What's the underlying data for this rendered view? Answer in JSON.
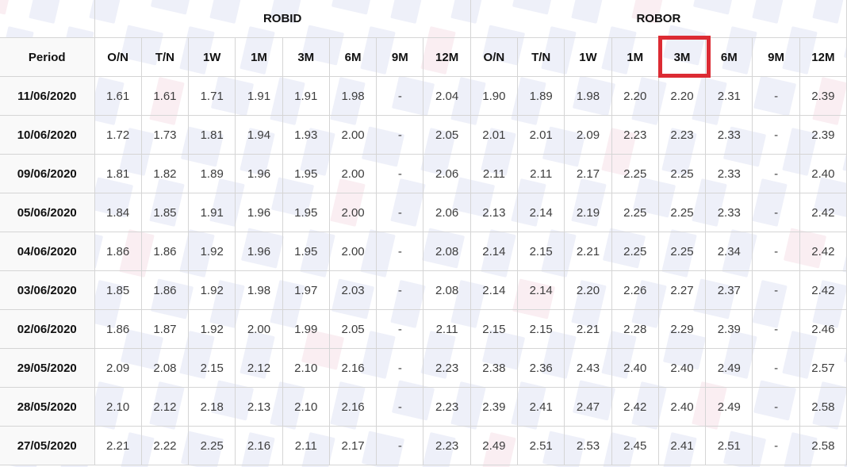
{
  "table": {
    "period_header": "Period",
    "groups": [
      {
        "label": "ROBID"
      },
      {
        "label": "ROBOR"
      }
    ]
  },
  "highlight": {
    "target_group": "ROBOR",
    "target_tenor": "3M",
    "color": "#dc2b33"
  },
  "colors": {
    "border": "#d5d5d5",
    "header_text": "#111111",
    "value_text": "#3d3d3d",
    "period_column_bg": "#f9f9f9",
    "watermark_lavender": "#eef0f9",
    "watermark_pink": "#faeef2",
    "highlight_red": "#dc2b33"
  },
  "chart_data": {
    "type": "table",
    "title": "",
    "column_groups": [
      "ROBID",
      "ROBOR"
    ],
    "tenors": [
      "O/N",
      "T/N",
      "1W",
      "1M",
      "3M",
      "6M",
      "9M",
      "12M"
    ],
    "rows": [
      {
        "period": "11/06/2020",
        "robid": [
          "1.61",
          "1.61",
          "1.71",
          "1.91",
          "1.91",
          "1.98",
          "-",
          "2.04"
        ],
        "robor": [
          "1.90",
          "1.89",
          "1.98",
          "2.20",
          "2.20",
          "2.31",
          "-",
          "2.39"
        ]
      },
      {
        "period": "10/06/2020",
        "robid": [
          "1.72",
          "1.73",
          "1.81",
          "1.94",
          "1.93",
          "2.00",
          "-",
          "2.05"
        ],
        "robor": [
          "2.01",
          "2.01",
          "2.09",
          "2.23",
          "2.23",
          "2.33",
          "-",
          "2.39"
        ]
      },
      {
        "period": "09/06/2020",
        "robid": [
          "1.81",
          "1.82",
          "1.89",
          "1.96",
          "1.95",
          "2.00",
          "-",
          "2.06"
        ],
        "robor": [
          "2.11",
          "2.11",
          "2.17",
          "2.25",
          "2.25",
          "2.33",
          "-",
          "2.40"
        ]
      },
      {
        "period": "05/06/2020",
        "robid": [
          "1.84",
          "1.85",
          "1.91",
          "1.96",
          "1.95",
          "2.00",
          "-",
          "2.06"
        ],
        "robor": [
          "2.13",
          "2.14",
          "2.19",
          "2.25",
          "2.25",
          "2.33",
          "-",
          "2.42"
        ]
      },
      {
        "period": "04/06/2020",
        "robid": [
          "1.86",
          "1.86",
          "1.92",
          "1.96",
          "1.95",
          "2.00",
          "-",
          "2.08"
        ],
        "robor": [
          "2.14",
          "2.15",
          "2.21",
          "2.25",
          "2.25",
          "2.34",
          "-",
          "2.42"
        ]
      },
      {
        "period": "03/06/2020",
        "robid": [
          "1.85",
          "1.86",
          "1.92",
          "1.98",
          "1.97",
          "2.03",
          "-",
          "2.08"
        ],
        "robor": [
          "2.14",
          "2.14",
          "2.20",
          "2.26",
          "2.27",
          "2.37",
          "-",
          "2.42"
        ]
      },
      {
        "period": "02/06/2020",
        "robid": [
          "1.86",
          "1.87",
          "1.92",
          "2.00",
          "1.99",
          "2.05",
          "-",
          "2.11"
        ],
        "robor": [
          "2.15",
          "2.15",
          "2.21",
          "2.28",
          "2.29",
          "2.39",
          "-",
          "2.46"
        ]
      },
      {
        "period": "29/05/2020",
        "robid": [
          "2.09",
          "2.08",
          "2.15",
          "2.12",
          "2.10",
          "2.16",
          "-",
          "2.23"
        ],
        "robor": [
          "2.38",
          "2.36",
          "2.43",
          "2.40",
          "2.40",
          "2.49",
          "-",
          "2.57"
        ]
      },
      {
        "period": "28/05/2020",
        "robid": [
          "2.10",
          "2.12",
          "2.18",
          "2.13",
          "2.10",
          "2.16",
          "-",
          "2.23"
        ],
        "robor": [
          "2.39",
          "2.41",
          "2.47",
          "2.42",
          "2.40",
          "2.49",
          "-",
          "2.58"
        ]
      },
      {
        "period": "27/05/2020",
        "robid": [
          "2.21",
          "2.22",
          "2.25",
          "2.16",
          "2.11",
          "2.17",
          "-",
          "2.23"
        ],
        "robor": [
          "2.49",
          "2.51",
          "2.53",
          "2.45",
          "2.41",
          "2.51",
          "-",
          "2.58"
        ]
      }
    ]
  }
}
